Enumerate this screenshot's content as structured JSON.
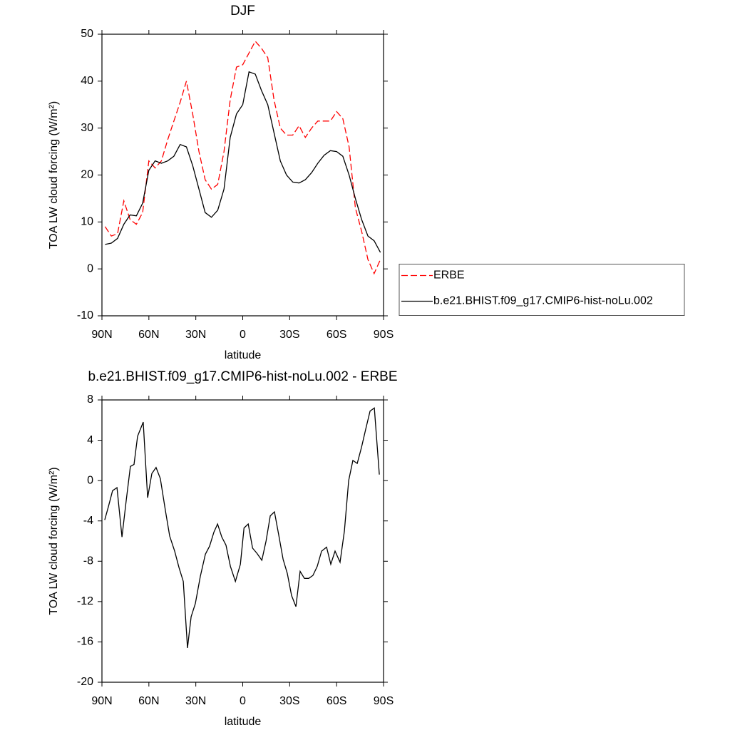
{
  "chart_data": [
    {
      "type": "line",
      "title": "DJF",
      "xlabel": "latitude",
      "ylabel": "TOA LW cloud forcing (W/m²)",
      "x": [
        88,
        84,
        80,
        76,
        72,
        68,
        64,
        60,
        56,
        52,
        48,
        44,
        40,
        36,
        32,
        28,
        24,
        20,
        16,
        12,
        8,
        4,
        0,
        -4,
        -8,
        -12,
        -16,
        -20,
        -24,
        -28,
        -32,
        -36,
        -40,
        -44,
        -48,
        -52,
        -56,
        -60,
        -64,
        -68,
        -72,
        -76,
        -80,
        -84,
        -88
      ],
      "series": [
        {
          "name": "ERBE",
          "color": "#ff0000",
          "line_style": "dashed",
          "values": [
            9,
            7,
            7.5,
            14.5,
            10.5,
            9.5,
            12,
            23,
            21.5,
            23,
            27.5,
            31.5,
            35.5,
            40,
            33,
            25,
            19,
            17,
            18,
            25,
            36,
            43,
            43.5,
            46,
            48.5,
            47,
            45,
            36,
            30,
            28.5,
            28.5,
            30.5,
            28,
            30,
            31.5,
            31.5,
            31.5,
            33.5,
            32,
            26,
            13,
            8,
            2,
            -1,
            2
          ]
        },
        {
          "name": "b.e21.BHIST.f09_g17.CMIP6-hist-noLu.002",
          "color": "#000000",
          "line_style": "solid",
          "values": [
            5.2,
            5.5,
            6.5,
            9.5,
            11.5,
            11.3,
            14,
            21,
            23,
            22.5,
            23,
            24,
            26.5,
            26,
            22,
            17,
            12,
            11,
            12.5,
            17,
            28,
            33,
            35,
            42,
            41.5,
            38,
            35,
            29,
            23,
            20,
            18.5,
            18.3,
            19,
            20.5,
            22.5,
            24.2,
            25.2,
            25,
            24,
            20,
            15,
            10.5,
            7,
            6,
            3.5
          ]
        }
      ],
      "xlim": [
        90,
        -90
      ],
      "xticks": [
        {
          "value": 90,
          "label": "90N"
        },
        {
          "value": 60,
          "label": "60N"
        },
        {
          "value": 30,
          "label": "30N"
        },
        0,
        {
          "value": -30,
          "label": "30S"
        },
        {
          "value": -60,
          "label": "60S"
        },
        {
          "value": -90,
          "label": "90S"
        }
      ],
      "ylim": [
        -10,
        50
      ],
      "yticks": [
        -10,
        0,
        10,
        20,
        30,
        40,
        50
      ],
      "legend": "right"
    },
    {
      "type": "line",
      "title": "b.e21.BHIST.f09_g17.CMIP6-hist-noLu.002 - ERBE",
      "xlabel": "latitude",
      "ylabel": "TOA LW cloud forcing (W/m²)",
      "x": [
        88.2,
        85.9,
        83.2,
        80.4,
        77.2,
        74.5,
        71.8,
        69.5,
        67.2,
        63.6,
        60.8,
        58.1,
        55.4,
        52.7,
        49.4,
        46.7,
        43.5,
        40.8,
        38.0,
        35.3,
        33.0,
        30.3,
        27.1,
        23.9,
        21.2,
        18.4,
        16.1,
        13.4,
        10.7,
        7.9,
        4.7,
        1.5,
        -0.8,
        -3.5,
        -6.3,
        -9.0,
        -12.2,
        -14.9,
        -17.6,
        -20.3,
        -23.0,
        -25.8,
        -28.5,
        -31.2,
        -34.0,
        -36.7,
        -39.4,
        -42.2,
        -44.9,
        -47.6,
        -50.4,
        -53.6,
        -56.3,
        -59.0,
        -62.2,
        -65.0,
        -67.7,
        -70.4,
        -73.2,
        -75.9,
        -78.6,
        -81.4,
        -84.1,
        -87.3
      ],
      "values": [
        -3.9,
        -2.6,
        -1,
        -0.7,
        -5.6,
        -2,
        1.4,
        1.6,
        4.4,
        5.8,
        -1.7,
        0.7,
        1.3,
        0.2,
        -3,
        -5.5,
        -7,
        -8.6,
        -10,
        -16.6,
        -13.5,
        -12.2,
        -9.5,
        -7.3,
        -6.5,
        -5.1,
        -4.3,
        -5.6,
        -6.4,
        -8.5,
        -10,
        -8.3,
        -4.7,
        -4.3,
        -6.7,
        -7.2,
        -7.9,
        -6,
        -3.5,
        -3.1,
        -5.4,
        -7.8,
        -9.2,
        -11.4,
        -12.5,
        -9,
        -9.7,
        -9.7,
        -9.4,
        -8.5,
        -7,
        -6.6,
        -8.3,
        -7,
        -8.1,
        -5,
        0,
        2,
        1.7,
        3.3,
        5.1,
        6.9,
        7.2,
        0.6
      ],
      "color": "#000000",
      "xlim": [
        90,
        -90
      ],
      "xticks": [
        {
          "value": 90,
          "label": "90N"
        },
        {
          "value": 60,
          "label": "60N"
        },
        {
          "value": 30,
          "label": "30N"
        },
        0,
        {
          "value": -30,
          "label": "30S"
        },
        {
          "value": -60,
          "label": "60S"
        },
        {
          "value": -90,
          "label": "90S"
        }
      ],
      "ylim": [
        -20,
        8
      ],
      "yticks": [
        -20,
        -16,
        -12,
        -8,
        -4,
        0,
        4,
        8
      ]
    }
  ]
}
